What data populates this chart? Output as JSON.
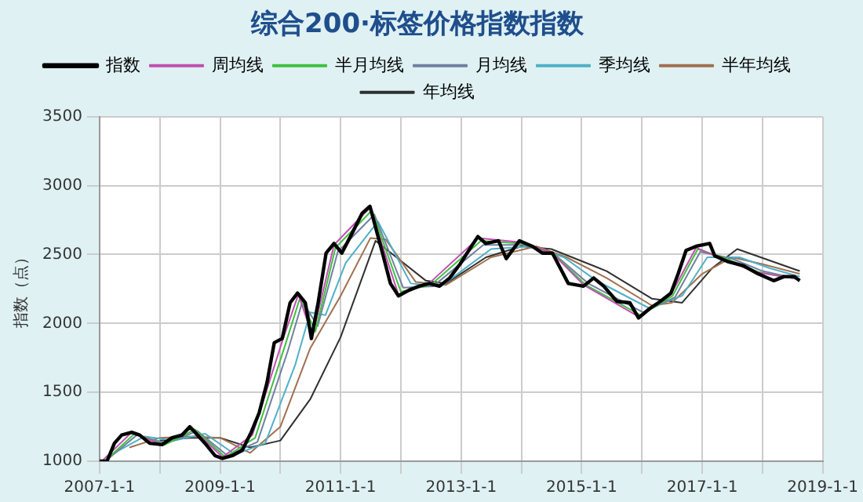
{
  "chart_data": {
    "type": "line",
    "title": "综合200·标签价格指数指数",
    "ylabel": "指数（点）",
    "legend": "top",
    "grid": true,
    "marker": "none",
    "line_style": "solid",
    "xlim": [
      "2007-01-01",
      "2019-01-01"
    ],
    "xticks": [
      {
        "value": "2007-01-01",
        "label": "2007-1-1"
      },
      {
        "value": "2008-01-01",
        "label": null
      },
      {
        "value": "2009-01-01",
        "label": "2009-1-1"
      },
      {
        "value": "2010-01-01",
        "label": null
      },
      {
        "value": "2011-01-01",
        "label": "2011-1-1"
      },
      {
        "value": "2012-01-01",
        "label": null
      },
      {
        "value": "2013-01-01",
        "label": "2013-1-1"
      },
      {
        "value": "2014-01-01",
        "label": null
      },
      {
        "value": "2015-01-01",
        "label": "2015-1-1"
      },
      {
        "value": "2016-01-01",
        "label": null
      },
      {
        "value": "2017-01-01",
        "label": "2017-1-1"
      },
      {
        "value": "2018-01-01",
        "label": null
      },
      {
        "value": "2019-01-01",
        "label": "2019-1-1"
      }
    ],
    "ylim": [
      1000,
      3500
    ],
    "yticks": [
      1000,
      1500,
      2000,
      2500,
      3000,
      3500
    ],
    "series": [
      {
        "name": "指数",
        "color": "#000000",
        "x": [
          "2007-01-01",
          "2007-02-15",
          "2007-04-01",
          "2007-05-15",
          "2007-07-15",
          "2007-09-01",
          "2007-11-01",
          "2008-01-15",
          "2008-03-15",
          "2008-05-15",
          "2008-07-01",
          "2008-08-01",
          "2008-10-01",
          "2008-12-01",
          "2009-01-15",
          "2009-03-15",
          "2009-05-15",
          "2009-07-08",
          "2009-08-25",
          "2009-10-12",
          "2009-11-25",
          "2010-01-12",
          "2010-03-01",
          "2010-04-15",
          "2010-06-01",
          "2010-07-08",
          "2010-08-18",
          "2010-10-05",
          "2010-11-22",
          "2011-01-08",
          "2011-03-10",
          "2011-05-12",
          "2011-06-28",
          "2011-07-27",
          "2011-09-12",
          "2011-10-30",
          "2011-12-17",
          "2012-02-18",
          "2012-04-20",
          "2012-06-20",
          "2012-08-22",
          "2012-10-23",
          "2012-12-25",
          "2013-03-15",
          "2013-04-12",
          "2013-05-30",
          "2013-08-15",
          "2013-10-01",
          "2013-12-20",
          "2014-03-08",
          "2014-05-08",
          "2014-07-08",
          "2014-08-25",
          "2014-10-12",
          "2015-01-12",
          "2015-03-15",
          "2015-05-15",
          "2015-08-03",
          "2015-10-20",
          "2015-12-12",
          "2016-02-20",
          "2016-04-22",
          "2016-06-25",
          "2016-08-08",
          "2016-09-25",
          "2016-11-25",
          "2017-02-15",
          "2017-03-18",
          "2017-06-02",
          "2017-09-05",
          "2017-12-05",
          "2018-03-10",
          "2018-05-12",
          "2018-07-12",
          "2018-08-15"
        ],
        "values": [
          1000,
          1000,
          1130,
          1190,
          1210,
          1190,
          1130,
          1120,
          1170,
          1190,
          1250,
          1210,
          1130,
          1040,
          1020,
          1040,
          1080,
          1210,
          1350,
          1570,
          1860,
          1890,
          2150,
          2220,
          2150,
          1890,
          2150,
          2510,
          2580,
          2510,
          2650,
          2800,
          2850,
          2720,
          2510,
          2290,
          2200,
          2240,
          2270,
          2290,
          2270,
          2330,
          2430,
          2580,
          2630,
          2580,
          2600,
          2470,
          2600,
          2560,
          2510,
          2510,
          2400,
          2290,
          2270,
          2330,
          2270,
          2160,
          2150,
          2040,
          2110,
          2160,
          2220,
          2360,
          2530,
          2560,
          2580,
          2490,
          2450,
          2420,
          2360,
          2310,
          2340,
          2340,
          2310
        ]
      },
      {
        "name": "周均线",
        "color": "#c050b0",
        "x": [
          "2007-01-15",
          "2007-07-15",
          "2008-01-15",
          "2008-07-15",
          "2009-01-15",
          "2009-07-15",
          "2010-01-15",
          "2010-04-20",
          "2010-07-15",
          "2010-11-22",
          "2011-06-28",
          "2011-12-17",
          "2012-06-20",
          "2013-04-15",
          "2013-12-20",
          "2014-07-08",
          "2015-01-12",
          "2015-12-12",
          "2016-06-25",
          "2016-11-25",
          "2017-06-02",
          "2017-12-05",
          "2018-08-15"
        ],
        "values": [
          1000,
          1210,
          1120,
          1240,
          1030,
          1190,
          1880,
          2210,
          1910,
          2570,
          2840,
          2210,
          2290,
          2620,
          2590,
          2510,
          2280,
          2050,
          2210,
          2550,
          2450,
          2370,
          2320
        ]
      },
      {
        "name": "半月均线",
        "color": "#40c040",
        "x": [
          "2007-02-01",
          "2007-08-01",
          "2008-02-01",
          "2008-08-01",
          "2009-02-01",
          "2009-08-01",
          "2010-02-01",
          "2010-05-01",
          "2010-08-01",
          "2010-12-01",
          "2011-07-10",
          "2012-01-01",
          "2012-07-01",
          "2013-05-01",
          "2014-01-01",
          "2014-07-20",
          "2015-01-25",
          "2015-12-25",
          "2016-07-05",
          "2016-12-05",
          "2017-06-15",
          "2017-12-15",
          "2018-08-15"
        ],
        "values": [
          1000,
          1200,
          1120,
          1230,
          1030,
          1170,
          1850,
          2190,
          1940,
          2550,
          2820,
          2230,
          2280,
          2600,
          2580,
          2500,
          2280,
          2060,
          2200,
          2540,
          2460,
          2370,
          2320
        ]
      },
      {
        "name": "月均线",
        "color": "#7080a0",
        "x": [
          "2007-02-15",
          "2007-08-15",
          "2008-02-15",
          "2008-08-15",
          "2009-02-15",
          "2009-08-15",
          "2010-02-15",
          "2010-05-15",
          "2010-08-15",
          "2010-12-15",
          "2011-07-25",
          "2012-01-15",
          "2012-07-15",
          "2013-05-15",
          "2014-01-15",
          "2014-08-01",
          "2015-02-10",
          "2016-01-10",
          "2016-07-20",
          "2016-12-20",
          "2017-07-01",
          "2018-01-01",
          "2018-08-15"
        ],
        "values": [
          1010,
          1190,
          1130,
          1220,
          1040,
          1140,
          1800,
          2160,
          1980,
          2520,
          2790,
          2260,
          2270,
          2570,
          2570,
          2490,
          2290,
          2080,
          2190,
          2520,
          2470,
          2380,
          2320
        ]
      },
      {
        "name": "季均线",
        "color": "#50b0c8",
        "x": [
          "2007-04-01",
          "2007-10-01",
          "2008-04-01",
          "2008-10-01",
          "2009-04-01",
          "2009-10-01",
          "2010-04-01",
          "2010-07-01",
          "2010-10-01",
          "2011-02-01",
          "2011-08-15",
          "2012-03-01",
          "2012-09-01",
          "2013-07-01",
          "2014-03-01",
          "2014-09-15",
          "2015-04-01",
          "2016-02-15",
          "2016-09-01",
          "2017-02-01",
          "2017-08-15",
          "2018-02-15",
          "2018-08-15"
        ],
        "values": [
          1060,
          1180,
          1150,
          1200,
          1050,
          1130,
          1700,
          2080,
          2060,
          2440,
          2740,
          2290,
          2270,
          2540,
          2560,
          2480,
          2310,
          2110,
          2200,
          2480,
          2480,
          2400,
          2340
        ]
      },
      {
        "name": "半年均线",
        "color": "#a07050",
        "x": [
          "2007-07-01",
          "2008-01-01",
          "2008-07-01",
          "2009-01-01",
          "2009-07-01",
          "2010-01-01",
          "2010-07-01",
          "2011-01-01",
          "2011-07-01",
          "2011-10-01",
          "2012-04-01",
          "2012-10-01",
          "2013-07-01",
          "2014-04-01",
          "2014-10-01",
          "2015-06-01",
          "2016-03-01",
          "2016-07-01",
          "2017-01-01",
          "2017-07-01",
          "2018-01-01",
          "2018-08-15"
        ],
        "values": [
          1100,
          1170,
          1180,
          1170,
          1060,
          1250,
          1820,
          2200,
          2620,
          2610,
          2300,
          2280,
          2480,
          2560,
          2480,
          2330,
          2130,
          2150,
          2360,
          2480,
          2430,
          2360
        ]
      },
      {
        "name": "年均线",
        "color": "#303030",
        "x": [
          "2008-01-01",
          "2008-07-01",
          "2009-01-01",
          "2009-07-01",
          "2010-01-01",
          "2010-07-01",
          "2011-01-01",
          "2011-08-01",
          "2012-06-01",
          "2012-10-01",
          "2013-06-01",
          "2014-01-01",
          "2014-07-01",
          "2015-06-01",
          "2016-03-01",
          "2016-09-01",
          "2017-03-01",
          "2017-08-01",
          "2018-08-15"
        ],
        "values": [
          1150,
          1170,
          1170,
          1100,
          1150,
          1450,
          1900,
          2600,
          2310,
          2290,
          2480,
          2560,
          2540,
          2380,
          2180,
          2150,
          2400,
          2540,
          2380
        ]
      }
    ]
  }
}
